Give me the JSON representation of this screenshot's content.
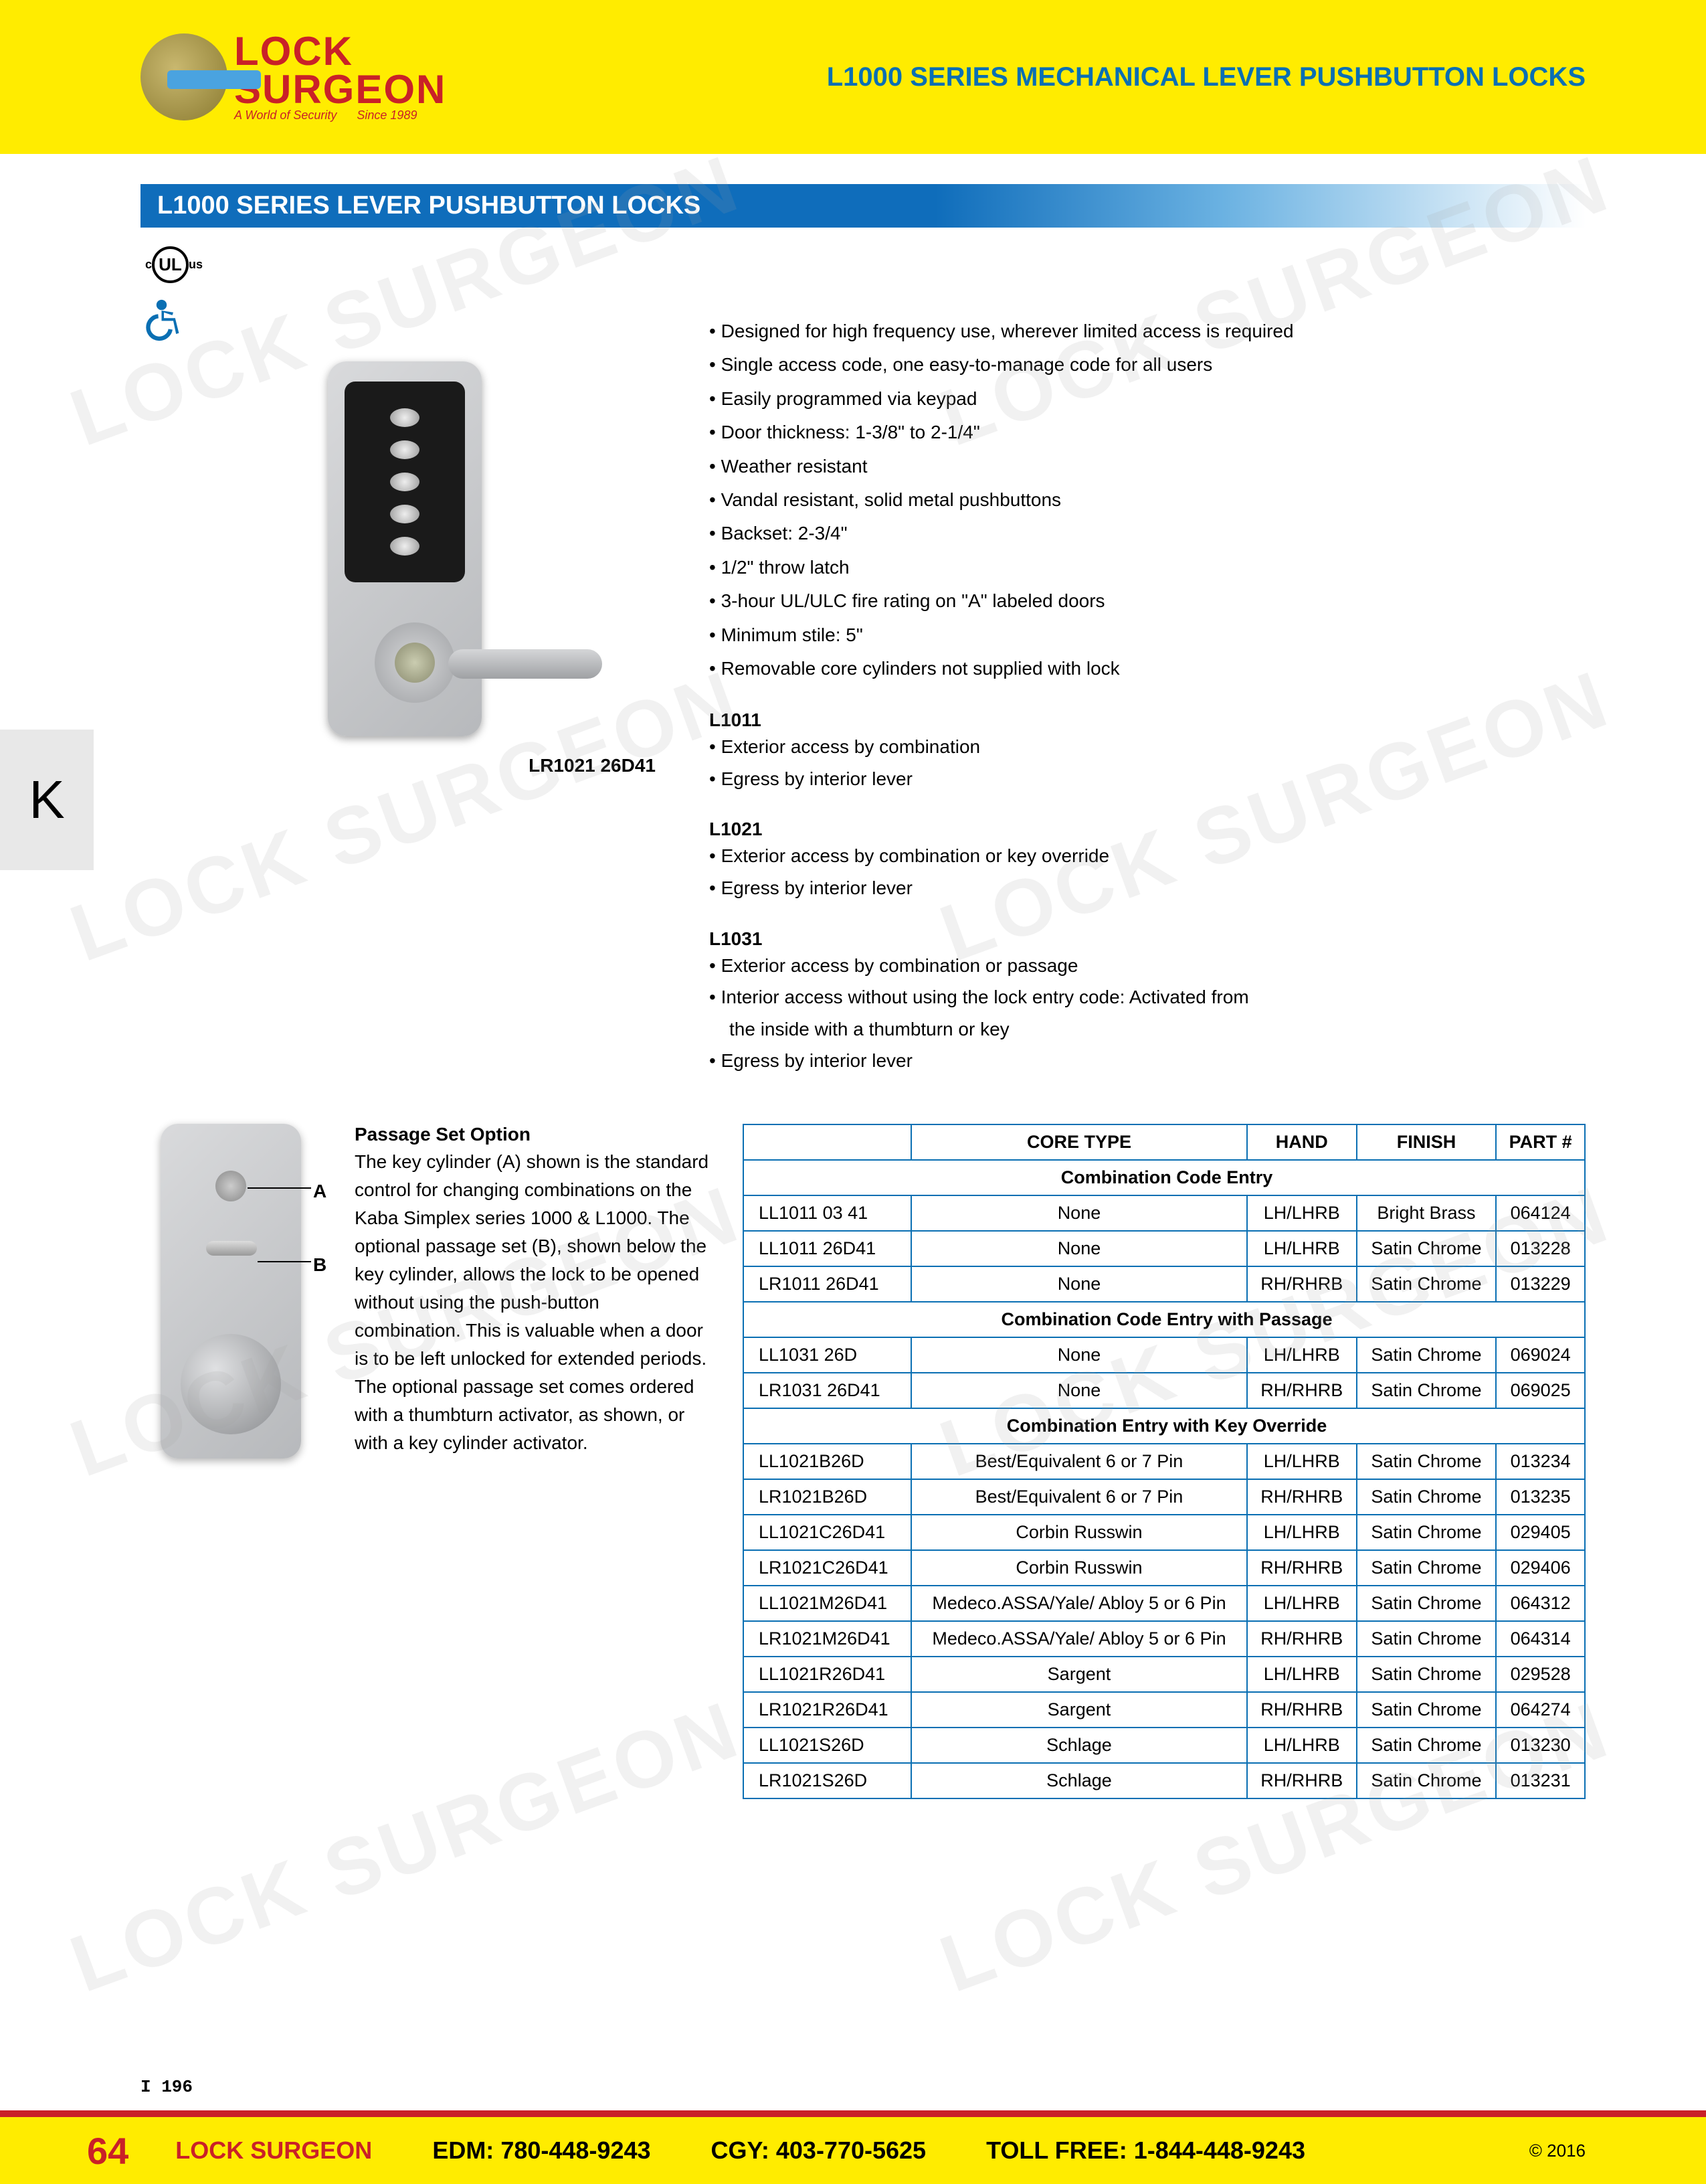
{
  "logo": {
    "line1": "LOCK",
    "line2": "SURGEON",
    "tag1": "A World of Security",
    "tag2": "Since 1989"
  },
  "header_right": "L1000 SERIES MECHANICAL LEVER PUSHBUTTON LOCKS",
  "section_title": "L1000 SERIES LEVER PUSHBUTTON LOCKS",
  "ul_label": "UL",
  "product_caption": "LR1021 26D41",
  "features": [
    "Designed for high frequency use, wherever limited access is required",
    "Single access code, one easy-to-manage code for all users",
    "Easily programmed via keypad",
    "Door thickness: 1-3/8\" to 2-1/4\"",
    "Weather resistant",
    "Vandal resistant, solid metal pushbuttons",
    "Backset: 2-3/4\"",
    "1/2\" throw latch",
    "3-hour UL/ULC fire rating on \"A\" labeled doors",
    "Minimum stile: 5\"",
    "Removable core cylinders not supplied with lock"
  ],
  "models": [
    {
      "title": "L1011",
      "bullets": [
        "Exterior access by combination",
        "Egress by interior lever"
      ]
    },
    {
      "title": "L1021",
      "bullets": [
        "Exterior access by combination or key override",
        "Egress by interior lever"
      ]
    },
    {
      "title": "L1031",
      "bullets": [
        "Exterior access by combination or passage",
        "Interior access without using the lock entry code: Activated from",
        "    the inside with a thumbturn or key",
        "Egress by interior lever"
      ]
    }
  ],
  "passage": {
    "title": "Passage Set Option",
    "body": "The key cylinder (A) shown is the standard control for changing combinations on the Kaba Simplex series 1000 & L1000. The optional passage set (B), shown below the key cylinder, allows the lock to be opened without using the push-button combination. This is valuable when a door is to be left unlocked for extended periods. The optional passage set comes ordered with a thumbturn activator, as shown, or with a key cylinder activator.",
    "a": "A",
    "b": "B"
  },
  "k_tab": "K",
  "table": {
    "headers": [
      "",
      "CORE TYPE",
      "HAND",
      "FINISH",
      "PART #"
    ],
    "sections": [
      {
        "title": "Combination Code Entry",
        "rows": [
          [
            "LL1011 03 41",
            "None",
            "LH/LHRB",
            "Bright Brass",
            "064124"
          ],
          [
            "LL1011 26D41",
            "None",
            "LH/LHRB",
            "Satin Chrome",
            "013228"
          ],
          [
            "LR1011 26D41",
            "None",
            "RH/RHRB",
            "Satin Chrome",
            "013229"
          ]
        ]
      },
      {
        "title": "Combination Code Entry with Passage",
        "rows": [
          [
            "LL1031 26D",
            "None",
            "LH/LHRB",
            "Satin Chrome",
            "069024"
          ],
          [
            "LR1031 26D41",
            "None",
            "RH/RHRB",
            "Satin Chrome",
            "069025"
          ]
        ]
      },
      {
        "title": "Combination Entry with Key Override",
        "rows": [
          [
            "LL1021B26D",
            "Best/Equivalent 6 or 7 Pin",
            "LH/LHRB",
            "Satin Chrome",
            "013234"
          ],
          [
            "LR1021B26D",
            "Best/Equivalent 6 or 7 Pin",
            "RH/RHRB",
            "Satin Chrome",
            "013235"
          ],
          [
            "LL1021C26D41",
            "Corbin Russwin",
            "LH/LHRB",
            "Satin Chrome",
            "029405"
          ],
          [
            "LR1021C26D41",
            "Corbin Russwin",
            "RH/RHRB",
            "Satin Chrome",
            "029406"
          ],
          [
            "LL1021M26D41",
            "Medeco.ASSA/Yale/ Abloy 5 or 6 Pin",
            "LH/LHRB",
            "Satin Chrome",
            "064312"
          ],
          [
            "LR1021M26D41",
            "Medeco.ASSA/Yale/ Abloy 5 or 6 Pin",
            "RH/RHRB",
            "Satin Chrome",
            "064314"
          ],
          [
            "LL1021R26D41",
            "Sargent",
            "LH/LHRB",
            "Satin Chrome",
            "029528"
          ],
          [
            "LR1021R26D41",
            "Sargent",
            "RH/RHRB",
            "Satin Chrome",
            "064274"
          ],
          [
            "LL1021S26D",
            "Schlage",
            "LH/LHRB",
            "Satin Chrome",
            "013230"
          ],
          [
            "LR1021S26D",
            "Schlage",
            "RH/RHRB",
            "Satin Chrome",
            "013231"
          ]
        ]
      }
    ]
  },
  "ref": "I 196",
  "footer": {
    "page": "64",
    "brand": "LOCK SURGEON",
    "edm_label": "EDM:",
    "edm": "780-448-9243",
    "cgy_label": "CGY:",
    "cgy": "403-770-5625",
    "toll_label": "TOLL FREE:",
    "toll": "1-844-448-9243",
    "copy": "© 2016"
  },
  "colors": {
    "yellow": "#ffec00",
    "red": "#c92128",
    "blue": "#0a6fb3",
    "blue_grad": "#0f6dbb",
    "text": "#000000"
  }
}
